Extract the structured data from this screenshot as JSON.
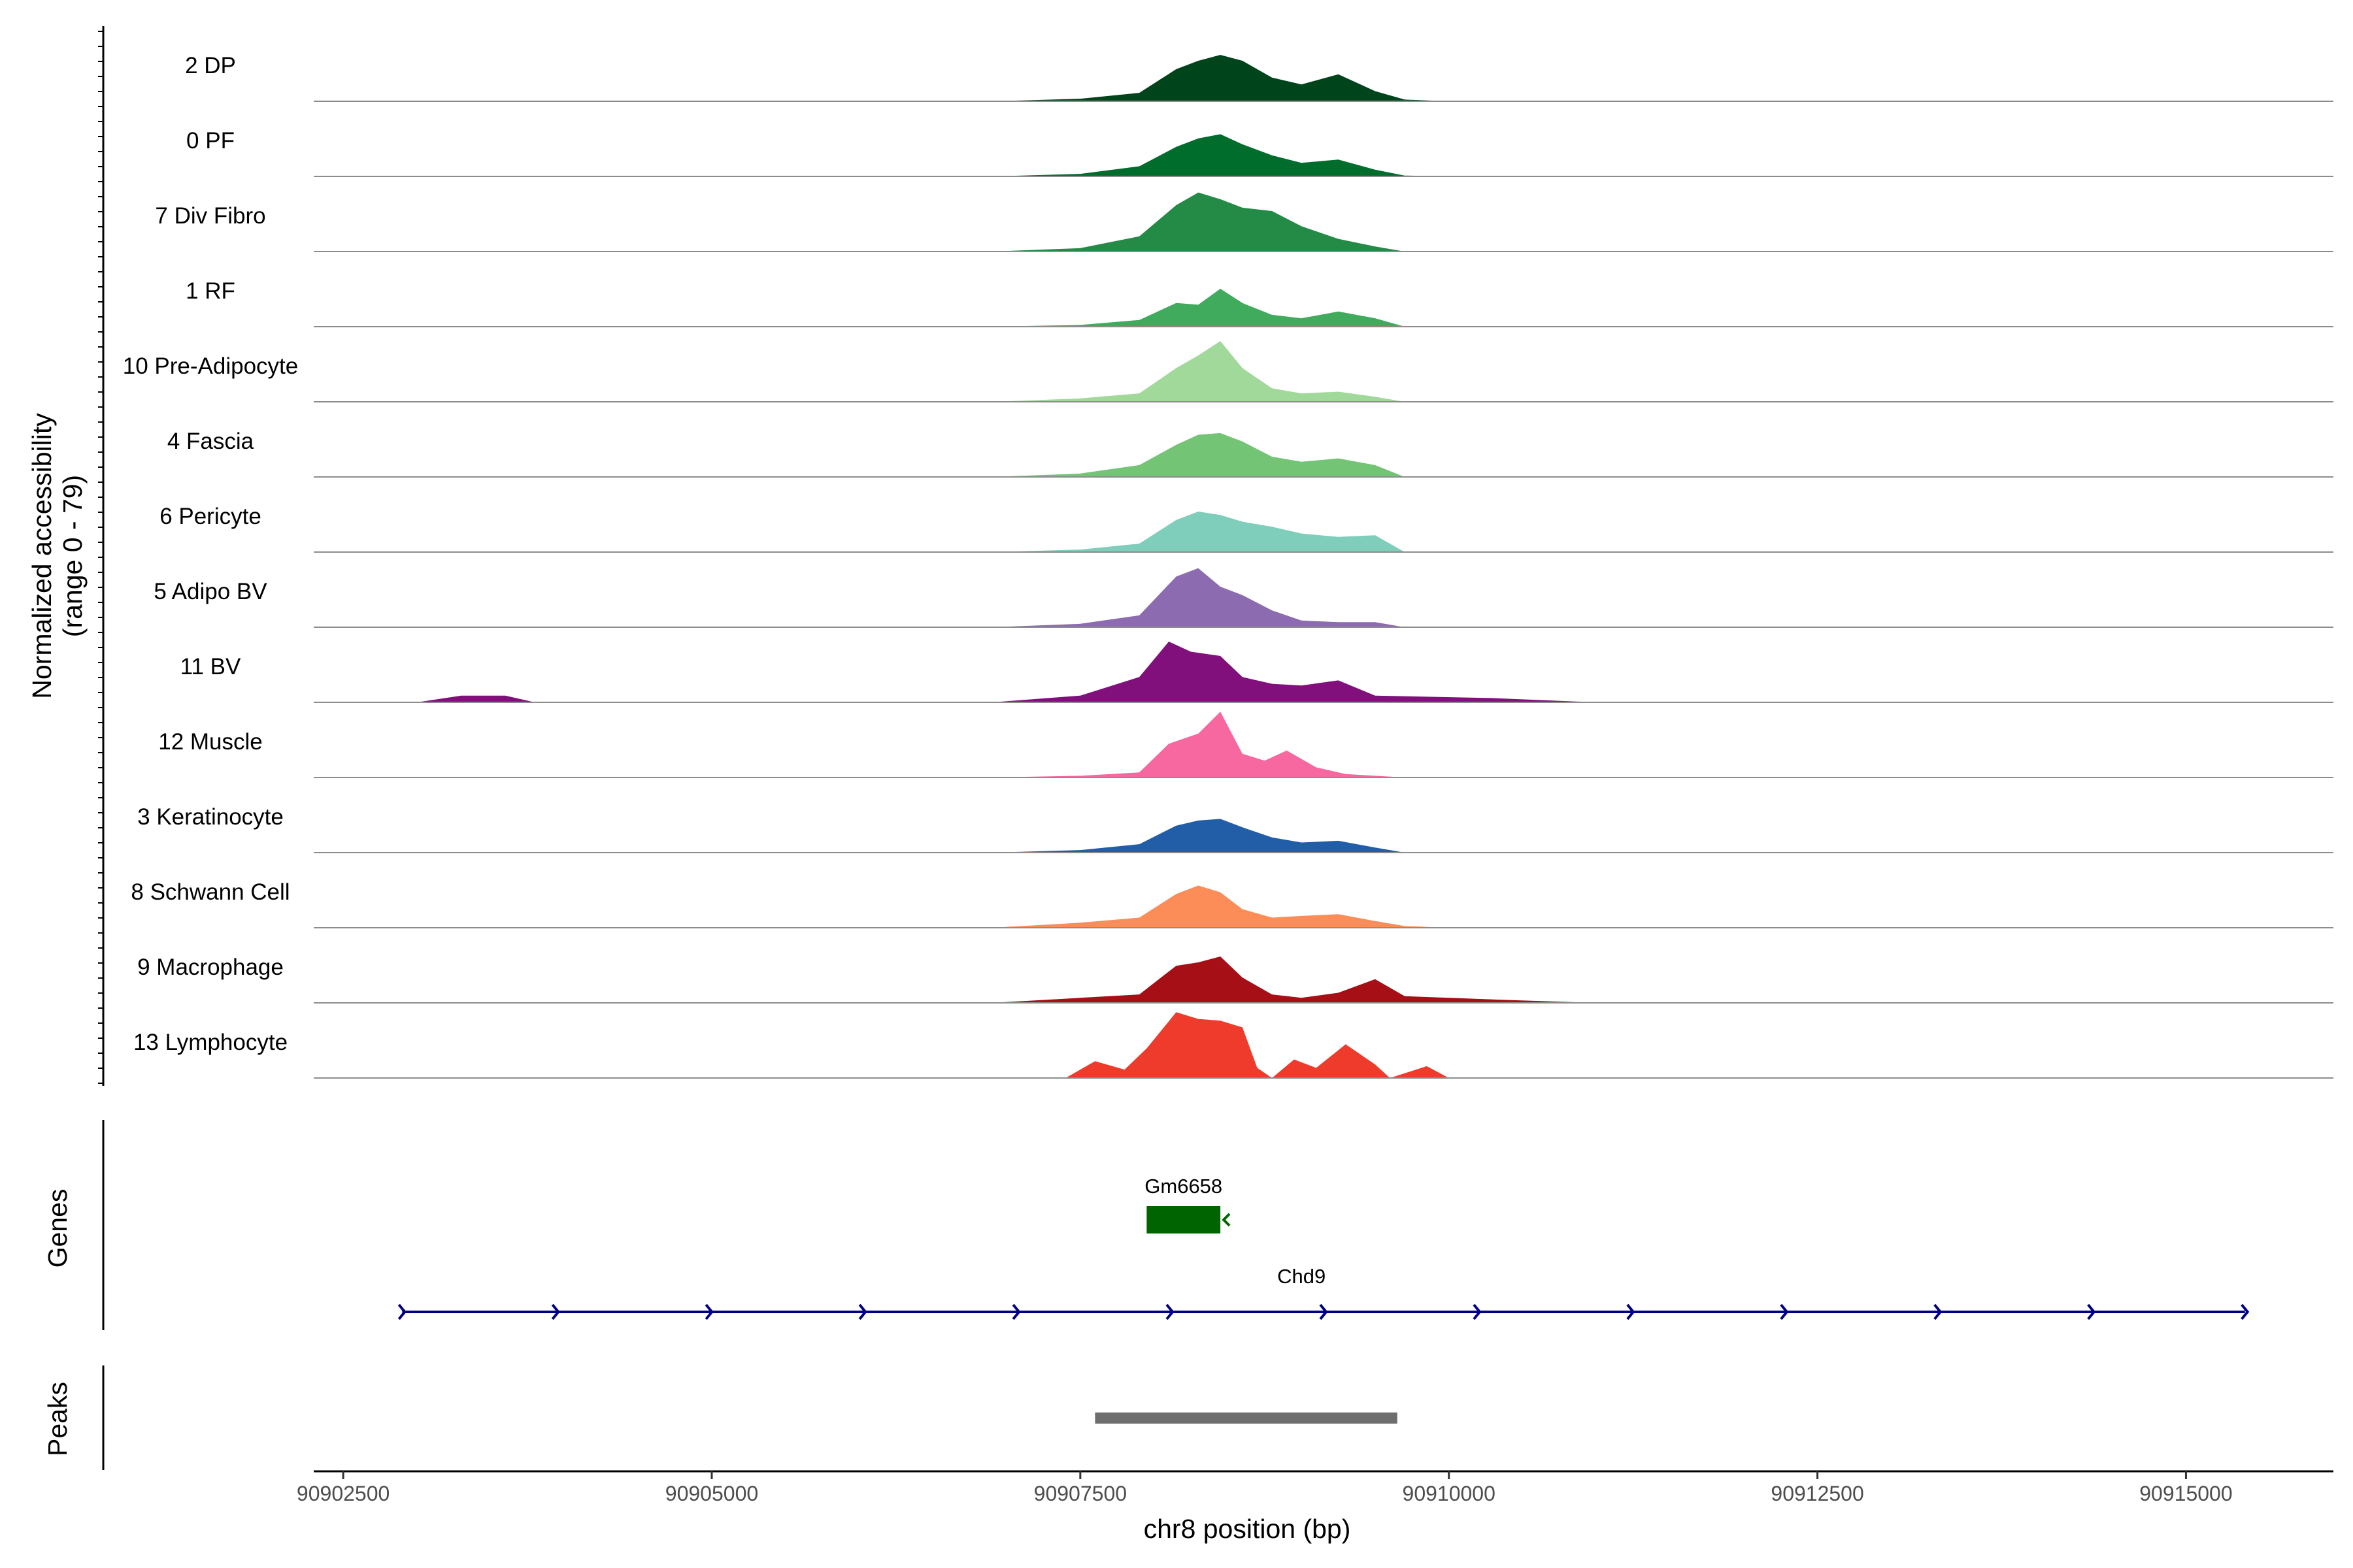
{
  "chart_data": {
    "type": "area",
    "xlabel": "chr8 position (bp)",
    "ylabel": "Normalized accessibility\n(range 0 - 79)",
    "ylim": [
      0,
      79
    ],
    "xlim": [
      90902300,
      90916000
    ],
    "xticks": [
      90902500,
      90905000,
      90907500,
      90910000,
      90912500,
      90915000
    ],
    "tracks": [
      {
        "label": "2 DP",
        "color": "#00441b",
        "x": [
          90906900,
          90907500,
          90907900,
          90908150,
          90908300,
          90908450,
          90908600,
          90908800,
          90909000,
          90909250,
          90909500,
          90909700,
          90910000
        ],
        "y": [
          0,
          3,
          10,
          38,
          48,
          55,
          48,
          28,
          20,
          32,
          12,
          2,
          0
        ]
      },
      {
        "label": "0 PF",
        "color": "#006d2c",
        "x": [
          90906900,
          90907500,
          90907900,
          90908150,
          90908300,
          90908450,
          90908600,
          90908800,
          90909000,
          90909250,
          90909500,
          90909700,
          90910000
        ],
        "y": [
          0,
          3,
          12,
          35,
          45,
          50,
          38,
          25,
          16,
          20,
          8,
          1,
          0
        ]
      },
      {
        "label": "7 Div Fibro",
        "color": "#238b45",
        "x": [
          90906900,
          90907500,
          90907900,
          90908150,
          90908300,
          90908450,
          90908600,
          90908800,
          90909000,
          90909250,
          90909500,
          90909700,
          90910000
        ],
        "y": [
          0,
          4,
          18,
          55,
          70,
          62,
          52,
          48,
          30,
          15,
          6,
          0,
          0
        ]
      },
      {
        "label": "1 RF",
        "color": "#41ab5d",
        "x": [
          90906900,
          90907500,
          90907900,
          90908150,
          90908300,
          90908450,
          90908600,
          90908800,
          90909000,
          90909250,
          90909500,
          90909700,
          90910000
        ],
        "y": [
          0,
          2,
          8,
          28,
          26,
          45,
          28,
          14,
          10,
          18,
          10,
          0,
          0
        ]
      },
      {
        "label": "10 Pre-Adipocyte",
        "color": "#a1d99b",
        "x": [
          90906900,
          90907500,
          90907900,
          90908150,
          90908300,
          90908450,
          90908600,
          90908800,
          90909000,
          90909250,
          90909500,
          90909700,
          90910000
        ],
        "y": [
          0,
          4,
          10,
          40,
          55,
          72,
          40,
          16,
          10,
          12,
          6,
          0,
          0
        ]
      },
      {
        "label": "4 Fascia",
        "color": "#74c476",
        "x": [
          90906900,
          90907500,
          90907900,
          90908150,
          90908300,
          90908450,
          90908600,
          90908800,
          90909000,
          90909250,
          90909500,
          90909700,
          90910000
        ],
        "y": [
          0,
          4,
          14,
          38,
          50,
          52,
          42,
          24,
          18,
          22,
          14,
          0,
          0
        ]
      },
      {
        "label": "6 Pericyte",
        "color": "#7fcdbb",
        "x": [
          90906900,
          90907500,
          90907900,
          90908150,
          90908300,
          90908450,
          90908600,
          90908800,
          90909000,
          90909250,
          90909500,
          90909700,
          90910000
        ],
        "y": [
          0,
          3,
          10,
          38,
          48,
          44,
          36,
          30,
          22,
          18,
          20,
          0,
          0
        ]
      },
      {
        "label": "5 Adipo BV",
        "color": "#8c6bb1",
        "x": [
          90906900,
          90907500,
          90907900,
          90908150,
          90908300,
          90908450,
          90908600,
          90908800,
          90909000,
          90909250,
          90909500,
          90909700,
          90910000
        ],
        "y": [
          0,
          4,
          14,
          60,
          70,
          48,
          38,
          20,
          8,
          6,
          6,
          0,
          0
        ]
      },
      {
        "label": "11 BV",
        "color": "#810f7c",
        "x": [
          90903000,
          90903300,
          90903600,
          90903800,
          90906900,
          90907500,
          90907900,
          90908100,
          90908250,
          90908450,
          90908600,
          90908800,
          90909000,
          90909250,
          90909500,
          90910300,
          90911000
        ],
        "y": [
          0,
          8,
          8,
          0,
          0,
          8,
          30,
          72,
          60,
          55,
          30,
          22,
          20,
          26,
          8,
          5,
          0
        ]
      },
      {
        "label": "12 Muscle",
        "color": "#f768a1",
        "x": [
          90906900,
          90907500,
          90907900,
          90908100,
          90908300,
          90908450,
          90908600,
          90908750,
          90908900,
          90909100,
          90909300,
          90909700
        ],
        "y": [
          0,
          2,
          6,
          40,
          52,
          78,
          28,
          20,
          32,
          12,
          4,
          0
        ]
      },
      {
        "label": "3 Keratinocyte",
        "color": "#225ea8",
        "x": [
          90906900,
          90907500,
          90907900,
          90908150,
          90908300,
          90908450,
          90908600,
          90908800,
          90909000,
          90909250,
          90909500,
          90909700,
          90910000
        ],
        "y": [
          0,
          3,
          10,
          32,
          38,
          40,
          30,
          18,
          12,
          14,
          6,
          0,
          0
        ]
      },
      {
        "label": "8 Schwann Cell",
        "color": "#fc8d59",
        "x": [
          90906900,
          90907500,
          90907900,
          90908150,
          90908300,
          90908450,
          90908600,
          90908800,
          90909000,
          90909250,
          90909500,
          90909700,
          90910000
        ],
        "y": [
          0,
          6,
          12,
          40,
          50,
          42,
          22,
          12,
          14,
          16,
          8,
          2,
          0
        ]
      },
      {
        "label": "9 Macrophage",
        "color": "#a50f15",
        "x": [
          90906900,
          90907500,
          90907900,
          90908150,
          90908300,
          90908450,
          90908600,
          90908800,
          90909000,
          90909250,
          90909500,
          90909700,
          90910300,
          90911000
        ],
        "y": [
          0,
          6,
          10,
          44,
          48,
          55,
          30,
          10,
          6,
          12,
          28,
          8,
          4,
          0
        ]
      },
      {
        "label": "13 Lymphocyte",
        "color": "#ef3b2c",
        "x": [
          90907400,
          90907600,
          90907800,
          90907950,
          90908150,
          90908300,
          90908450,
          90908600,
          90908700,
          90908800,
          90908950,
          90909100,
          90909300,
          90909500,
          90909600,
          90909850,
          90910000
        ],
        "y": [
          0,
          20,
          10,
          35,
          78,
          70,
          68,
          60,
          12,
          0,
          22,
          12,
          40,
          16,
          0,
          14,
          0
        ]
      }
    ],
    "genes": [
      {
        "name": "Gm6658",
        "start": 90907950,
        "end": 90908450,
        "strand": "-",
        "color": "#006400"
      },
      {
        "name": "Chd9",
        "start": 90902900,
        "end": 90915400,
        "strand": "+",
        "color": "#000080"
      }
    ],
    "peaks": [
      {
        "start": 90907600,
        "end": 90909650,
        "color": "#6e6e6e"
      }
    ],
    "panel_titles": {
      "genes": "Genes",
      "peaks": "Peaks"
    }
  }
}
